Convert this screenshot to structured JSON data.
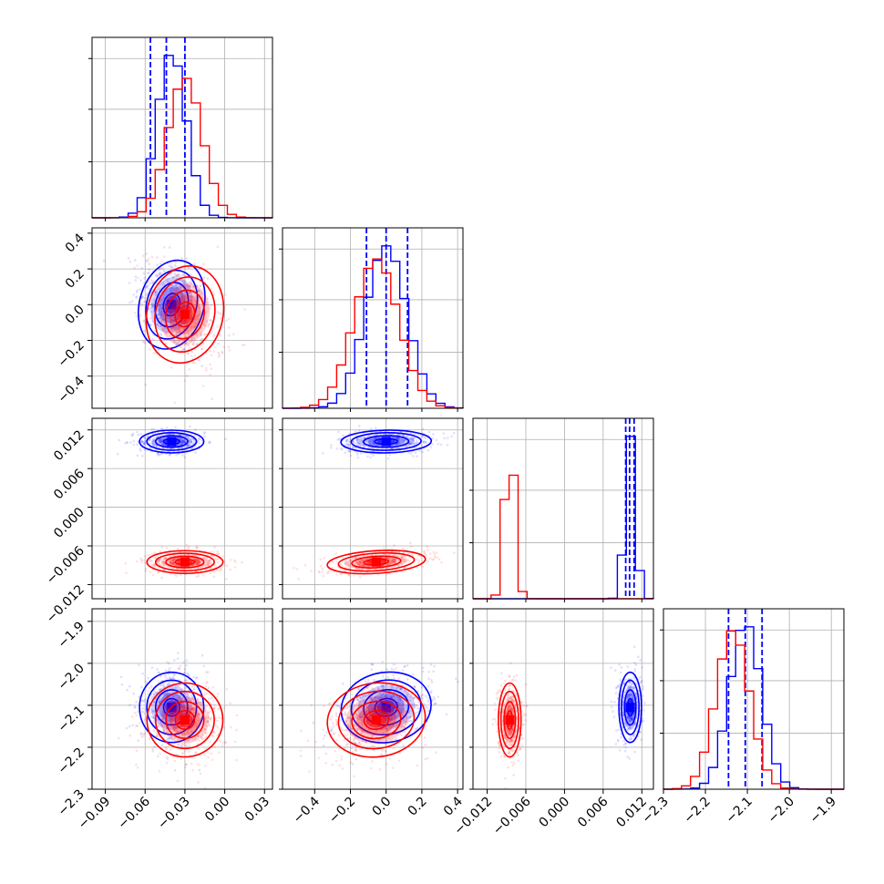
{
  "chart_data": {
    "type": "corner",
    "grid": true,
    "colors": {
      "series_a": "#0000ff",
      "series_b": "#ff0000"
    },
    "series": [
      {
        "color": "#0000ff",
        "means": [
          -0.04,
          0.0,
          0.0102,
          -2.105
        ],
        "sigmas": [
          0.011,
          0.115,
          0.0008,
          0.038
        ],
        "correlations": {
          "0-1": -0.35,
          "0-2": 0.0,
          "1-2": 0.1,
          "0-3": 0.0,
          "1-3": 0.35,
          "2-3": 0.0
        },
        "quantiles": [
          [
            -0.056,
            -0.044,
            -0.03
          ],
          [
            -0.11,
            0.0,
            0.12
          ],
          [
            0.0095,
            0.0101,
            0.0108
          ],
          [
            -2.145,
            -2.105,
            -2.065
          ]
        ]
      },
      {
        "color": "#ff0000",
        "means": [
          -0.03,
          -0.055,
          -0.0085,
          -2.135
        ],
        "sigmas": [
          0.013,
          0.125,
          0.0008,
          0.04
        ],
        "correlations": {
          "0-1": -0.35,
          "0-2": 0.0,
          "1-2": 0.45,
          "0-3": 0.0,
          "1-3": 0.3,
          "2-3": 0.0
        }
      }
    ],
    "parameters": [
      {
        "range": [
          -0.1,
          0.036
        ],
        "ticks": [
          -0.09,
          -0.06,
          -0.03,
          0.0,
          0.03
        ],
        "tick_labels": [
          "−0.09",
          "−0.06",
          "−0.03",
          "0.00",
          "0.03"
        ]
      },
      {
        "range": [
          -0.58,
          0.43
        ],
        "ticks": [
          -0.4,
          -0.2,
          0.0,
          0.2,
          0.4
        ],
        "tick_labels": [
          "−0.4",
          "−0.2",
          "0.0",
          "0.2",
          "0.4"
        ]
      },
      {
        "range": [
          -0.0142,
          0.0138
        ],
        "ticks": [
          -0.012,
          -0.006,
          0.0,
          0.006,
          0.012
        ],
        "tick_labels": [
          "−0.012",
          "−0.006",
          "0.000",
          "0.006",
          "0.012"
        ]
      },
      {
        "range": [
          -2.3,
          -1.87
        ],
        "ticks": [
          -2.3,
          -2.2,
          -2.1,
          -2.0,
          -1.9
        ],
        "tick_labels": [
          "−2.3",
          "−2.2",
          "−2.1",
          "−2.0",
          "−1.9"
        ]
      }
    ]
  }
}
